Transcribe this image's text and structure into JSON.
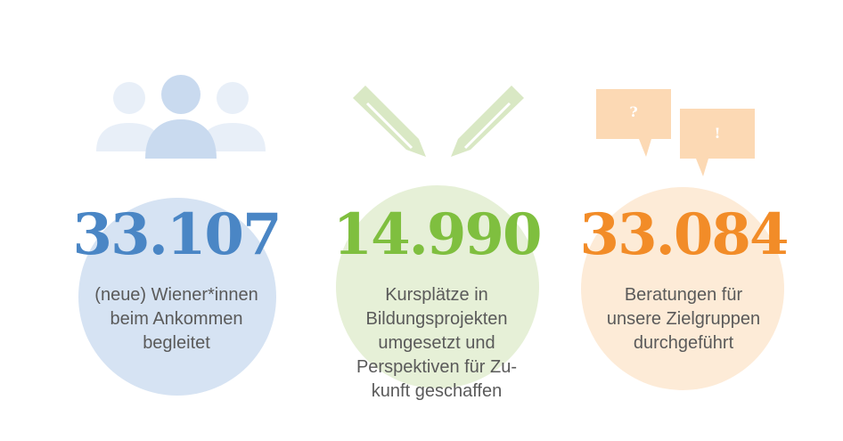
{
  "stats": [
    {
      "number": "33.107",
      "description": [
        "(neue) Wiener*innen",
        "beim Ankommen",
        "begleitet"
      ],
      "icon": "people-icon",
      "color": "#4a86c5",
      "circle_color": "#d6e3f3"
    },
    {
      "number": "14.990",
      "description": [
        "Kursplätze in",
        "Bildungsprojekten",
        "umgesetzt und",
        "Perspektiven für Zu-",
        "kunft geschaffen"
      ],
      "icon": "pencils-icon",
      "color": "#7fbf3f",
      "circle_color": "#e6f0d7"
    },
    {
      "number": "33.084",
      "description": [
        "Beratungen für",
        "unsere Zielgruppen",
        "durchgeführt"
      ],
      "icon": "speech-bubbles-icon",
      "color": "#f28c28",
      "circle_color": "#fdebd7",
      "bubbles": [
        "?",
        "!"
      ]
    }
  ]
}
